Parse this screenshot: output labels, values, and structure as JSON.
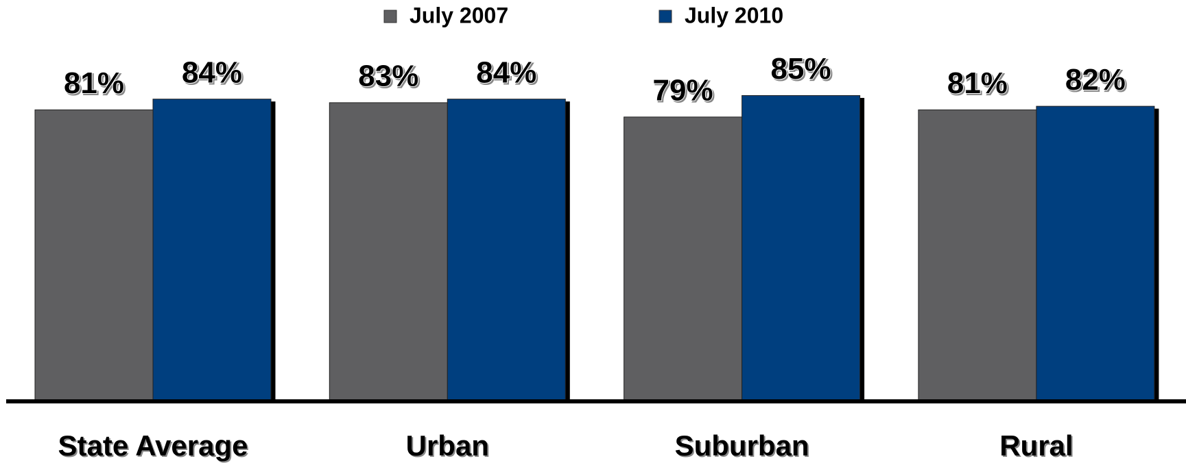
{
  "chart_data": {
    "type": "bar",
    "categories": [
      "State Average",
      "Urban",
      "Suburban",
      "Rural"
    ],
    "series": [
      {
        "name": "July 2007",
        "color": "#5f5f61",
        "values": [
          81,
          83,
          79,
          81
        ],
        "value_labels": [
          "81%",
          "83%",
          "79%",
          "81%"
        ]
      },
      {
        "name": "July 2010",
        "color": "#003f7f",
        "values": [
          84,
          84,
          85,
          82
        ],
        "value_labels": [
          "84%",
          "84%",
          "85%",
          "82%"
        ]
      }
    ],
    "ylim": [
      0,
      100
    ],
    "legend": "top"
  }
}
